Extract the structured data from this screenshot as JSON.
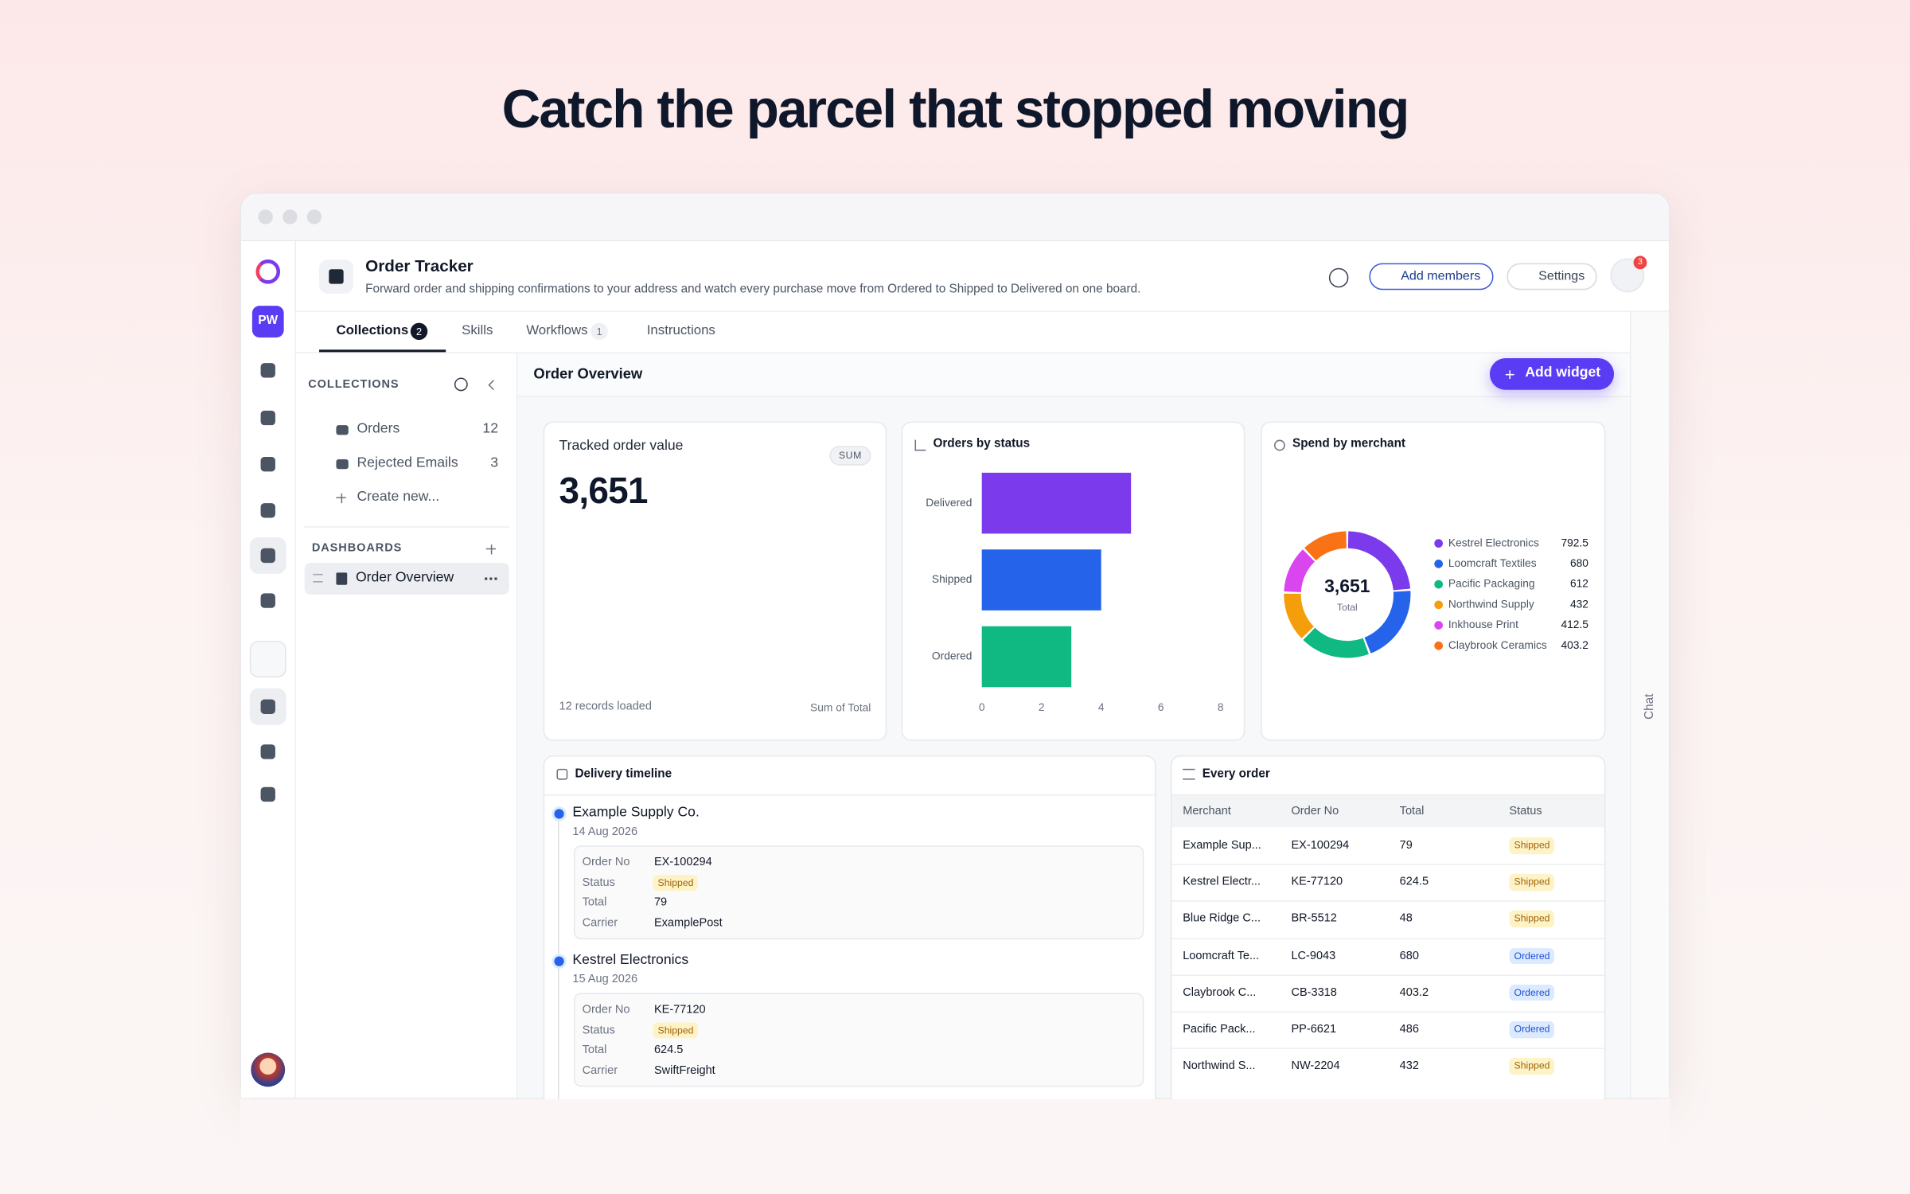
{
  "headline": "Catch the parcel that stopped moving",
  "rail": {
    "initials": "PW"
  },
  "header": {
    "title": "Order Tracker",
    "description": "Forward order and shipping confirmations to your address and watch every purchase move from Ordered to Shipped to Delivered on one board.",
    "buttons": [
      "Add members",
      "Settings"
    ],
    "notification_count": 3
  },
  "tabs": [
    {
      "label": "Collections",
      "count": 2
    },
    {
      "label": "Skills"
    },
    {
      "label": "Workflows",
      "count": 1
    },
    {
      "label": "Instructions"
    }
  ],
  "sidebar": {
    "collections_heading": "COLLECTIONS",
    "collections": [
      {
        "name": "Orders",
        "count": 12
      },
      {
        "name": "Rejected Emails",
        "count": 3
      }
    ],
    "create": "Create new...",
    "dashboards_heading": "DASHBOARDS",
    "dashboards": [
      "Order Overview"
    ]
  },
  "dashboard": {
    "title": "Order Overview",
    "add_widget": "Add widget"
  },
  "kpi": {
    "title": "Tracked order value",
    "badge": "SUM",
    "value": "3,651",
    "footer_left": "12 records loaded",
    "footer_right": "Sum of Total"
  },
  "status_chart": {
    "type": "bar",
    "title": "Orders by status",
    "categories": [
      "Delivered",
      "Shipped",
      "Ordered"
    ],
    "values": [
      5,
      4,
      3
    ],
    "xlim": [
      0,
      8
    ],
    "xticks": [
      0,
      2,
      4,
      6,
      8
    ],
    "colors": [
      "#7c3aed",
      "#2563eb",
      "#10b981"
    ]
  },
  "merchant_chart": {
    "type": "pie",
    "title": "Spend by merchant",
    "center_value": "3,651",
    "center_label": "Total",
    "categories": [
      "Kestrel Electronics",
      "Loomcraft Textiles",
      "Pacific Packaging",
      "Northwind Supply",
      "Inkhouse Print",
      "Claybrook Ceramics"
    ],
    "values": [
      792.5,
      680,
      612,
      432,
      412.5,
      403.2
    ],
    "colors": [
      "#7c3aed",
      "#2563eb",
      "#10b981",
      "#f59e0b",
      "#d946ef",
      "#f97316"
    ]
  },
  "timeline": {
    "title": "Delivery timeline",
    "fields": [
      "Order No",
      "Status",
      "Total",
      "Carrier"
    ],
    "entries": [
      {
        "merchant": "Example Supply Co.",
        "date": "14 Aug 2026",
        "order_no": "EX-100294",
        "status": "Shipped",
        "total": 79,
        "carrier": "ExamplePost"
      },
      {
        "merchant": "Kestrel Electronics",
        "date": "15 Aug 2026",
        "order_no": "KE-77120",
        "status": "Shipped",
        "total": 624.5,
        "carrier": "SwiftFreight"
      }
    ]
  },
  "table": {
    "title": "Every order",
    "columns": [
      "Merchant",
      "Order No",
      "Total",
      "Status"
    ],
    "rows": [
      [
        "Example Sup...",
        "EX-100294",
        79,
        "Shipped"
      ],
      [
        "Kestrel Electr...",
        "KE-77120",
        624.5,
        "Shipped"
      ],
      [
        "Blue Ridge C...",
        "BR-5512",
        48,
        "Shipped"
      ],
      [
        "Loomcraft Te...",
        "LC-9043",
        680,
        "Ordered"
      ],
      [
        "Claybrook C...",
        "CB-3318",
        403.2,
        "Ordered"
      ],
      [
        "Pacific Pack...",
        "PP-6621",
        486,
        "Ordered"
      ],
      [
        "Northwind S...",
        "NW-2204",
        432,
        "Shipped"
      ]
    ]
  },
  "chat_label": "Chat"
}
